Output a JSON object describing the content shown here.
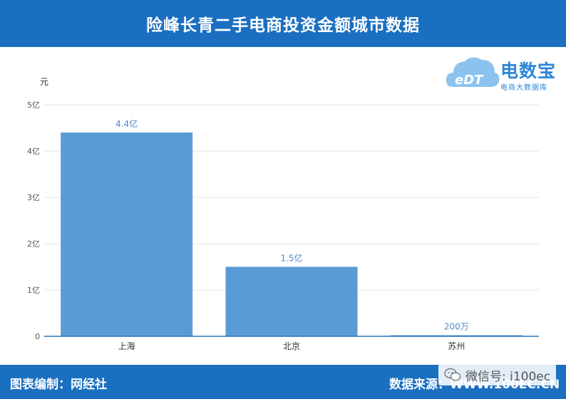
{
  "header": {
    "title": "险峰长青二手电商投资金额城市数据"
  },
  "logo": {
    "name": "电数宝",
    "tagline": "电商大数据库",
    "mark": "eDT"
  },
  "footer": {
    "left": "图表编制：网经社",
    "right": "数据来源：WWW.100EC.CN",
    "watermark": "微信号: i100ec"
  },
  "colors": {
    "header_bg": "#1a6fc0",
    "bar": "#5b9bd5",
    "axis": "#2e75b6"
  },
  "chart_data": {
    "type": "bar",
    "ylabel": "元",
    "categories": [
      "上海",
      "北京",
      "苏州"
    ],
    "values": [
      440000000,
      150000000,
      2000000
    ],
    "data_labels": [
      "4.4亿",
      "1.5亿",
      "200万"
    ],
    "ylim": [
      0,
      500000000
    ],
    "yticks": [
      0,
      100000000,
      200000000,
      300000000,
      400000000,
      500000000
    ],
    "ytick_labels": [
      "0",
      "1亿",
      "2亿",
      "3亿",
      "4亿",
      "5亿"
    ],
    "grid": true,
    "legend": "none"
  }
}
